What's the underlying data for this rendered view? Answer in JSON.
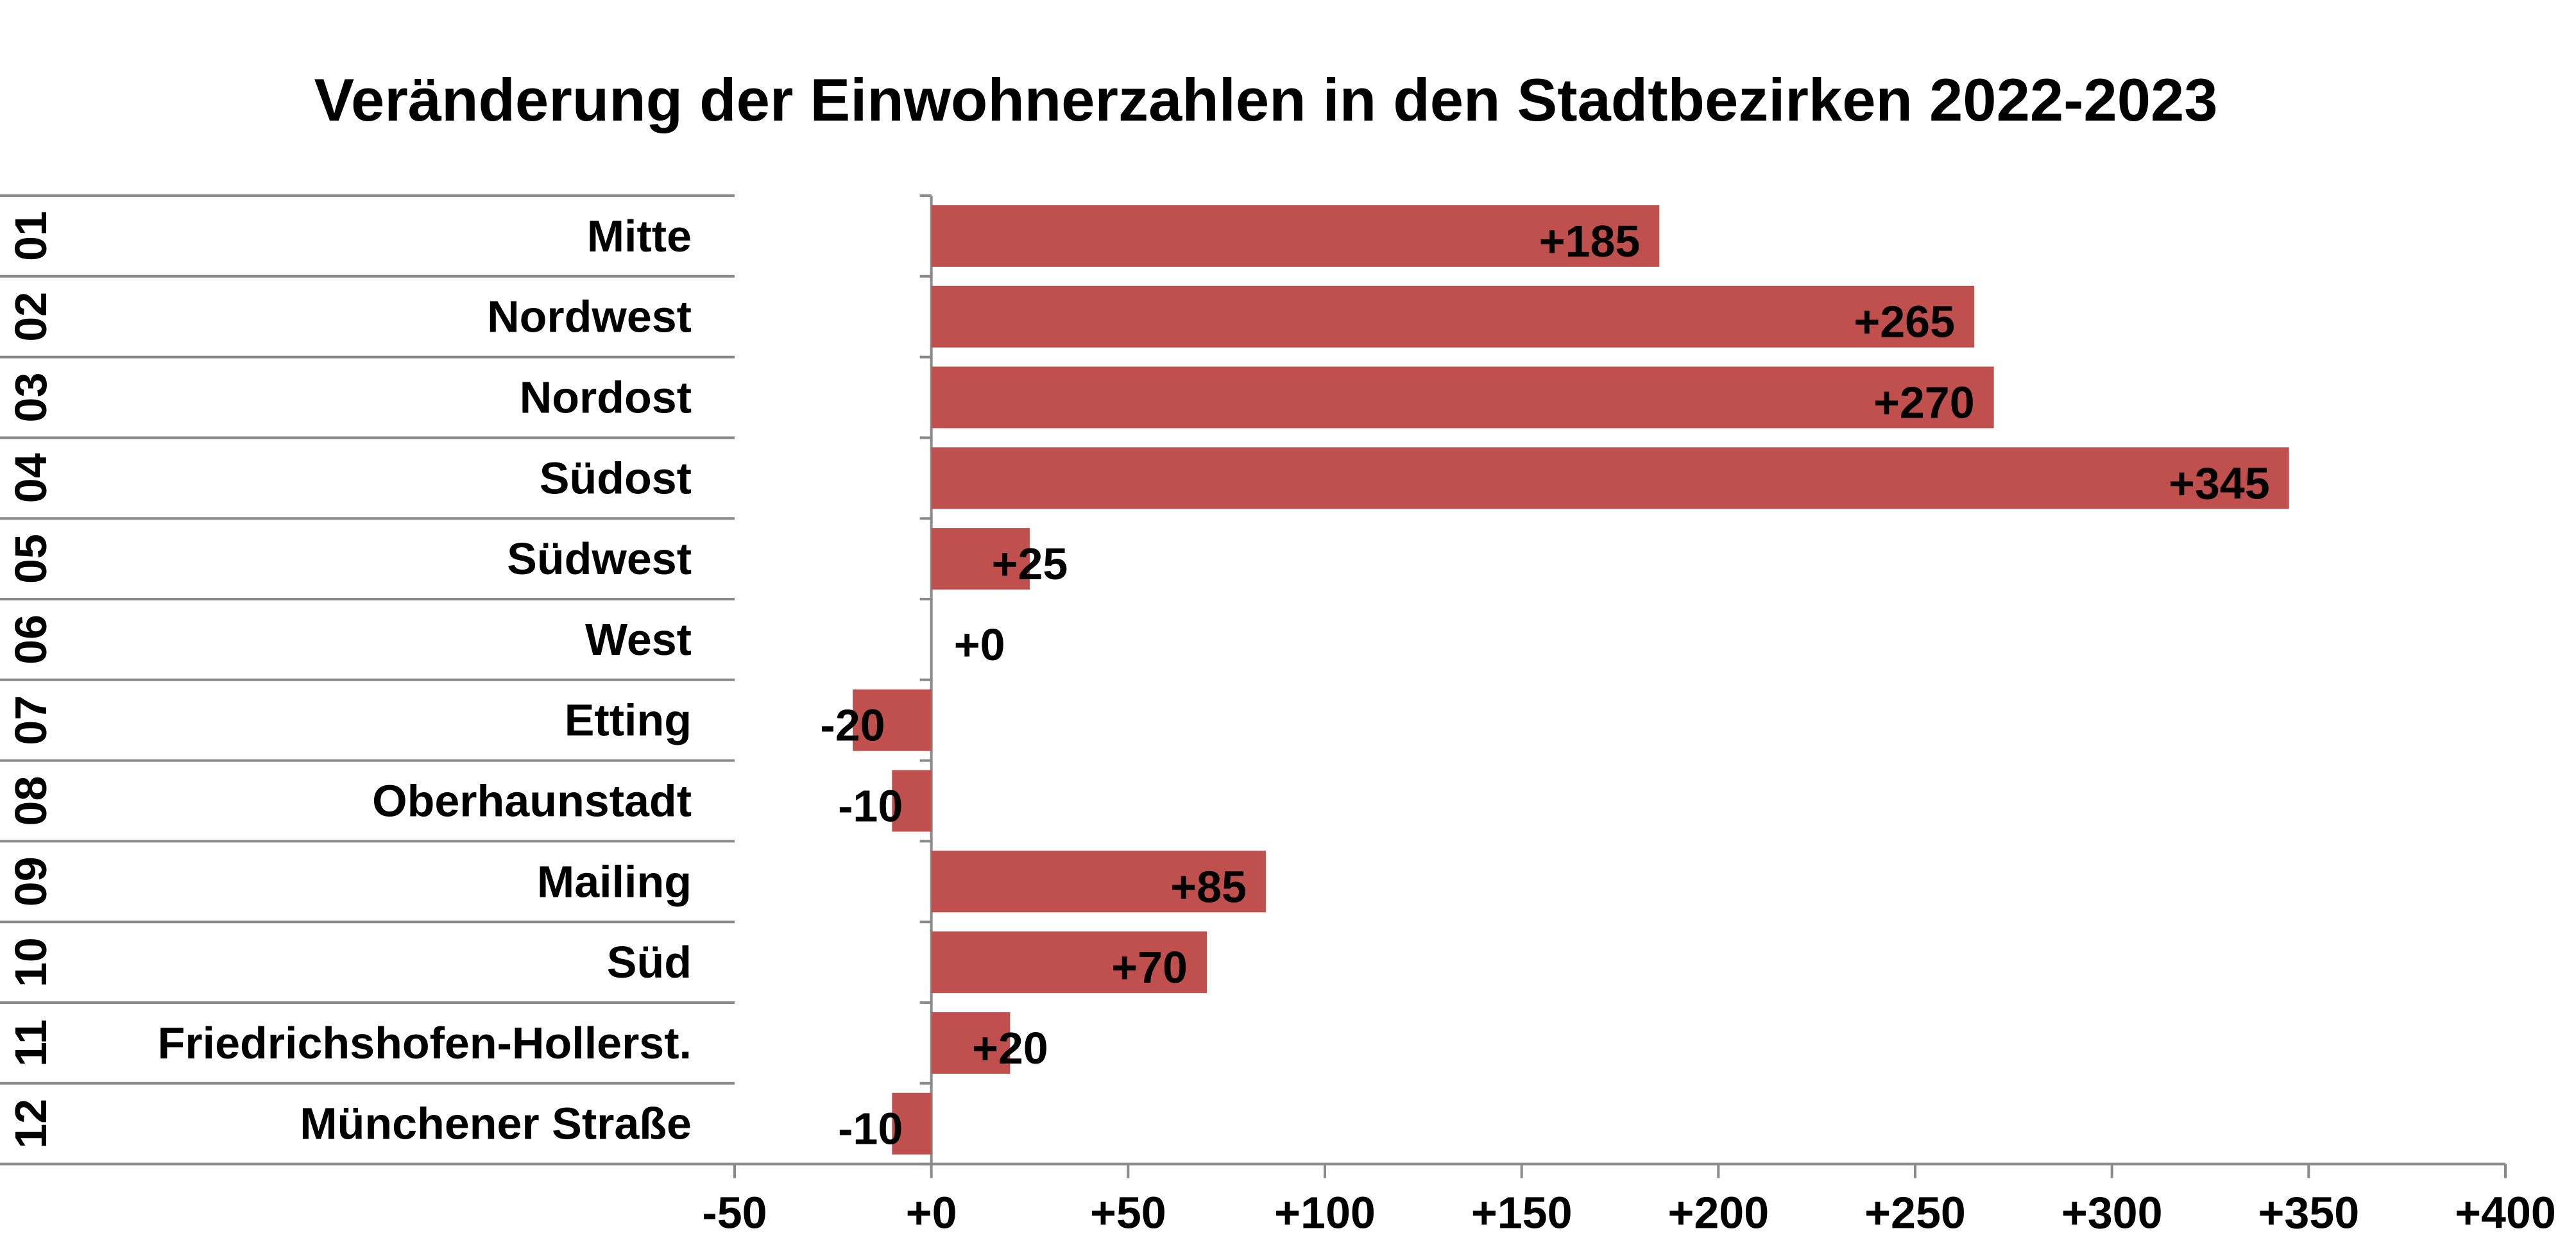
{
  "chart_data": {
    "type": "bar",
    "orientation": "horizontal",
    "title": "Veränderung der Einwohnerzahlen in den Stadtbezirken 2022-2023",
    "xlabel": "",
    "ylabel": "",
    "xlim": [
      -50,
      400
    ],
    "ticks": [
      "-50",
      "+0",
      "+50",
      "+100",
      "+150",
      "+200",
      "+250",
      "+300",
      "+350",
      "+400"
    ],
    "tick_values": [
      -50,
      0,
      50,
      100,
      150,
      200,
      250,
      300,
      350,
      400
    ],
    "bar_color": "#c0504d",
    "grid": false,
    "legend": "none",
    "rows": [
      {
        "num": "01",
        "name": "Mitte",
        "value": 185,
        "label": "+185"
      },
      {
        "num": "02",
        "name": "Nordwest",
        "value": 265,
        "label": "+265"
      },
      {
        "num": "03",
        "name": "Nordost",
        "value": 270,
        "label": "+270"
      },
      {
        "num": "04",
        "name": "Südost",
        "value": 345,
        "label": "+345"
      },
      {
        "num": "05",
        "name": "Südwest",
        "value": 25,
        "label": "+25"
      },
      {
        "num": "06",
        "name": "West",
        "value": 0,
        "label": "+0"
      },
      {
        "num": "07",
        "name": "Etting",
        "value": -20,
        "label": "-20"
      },
      {
        "num": "08",
        "name": "Oberhaunstadt",
        "value": -10,
        "label": "-10"
      },
      {
        "num": "09",
        "name": "Mailing",
        "value": 85,
        "label": "+85"
      },
      {
        "num": "10",
        "name": "Süd",
        "value": 70,
        "label": "+70"
      },
      {
        "num": "11",
        "name": "Friedrichshofen-Hollerst.",
        "value": 20,
        "label": "+20"
      },
      {
        "num": "12",
        "name": "Münchener Straße",
        "value": -10,
        "label": "-10"
      }
    ]
  }
}
